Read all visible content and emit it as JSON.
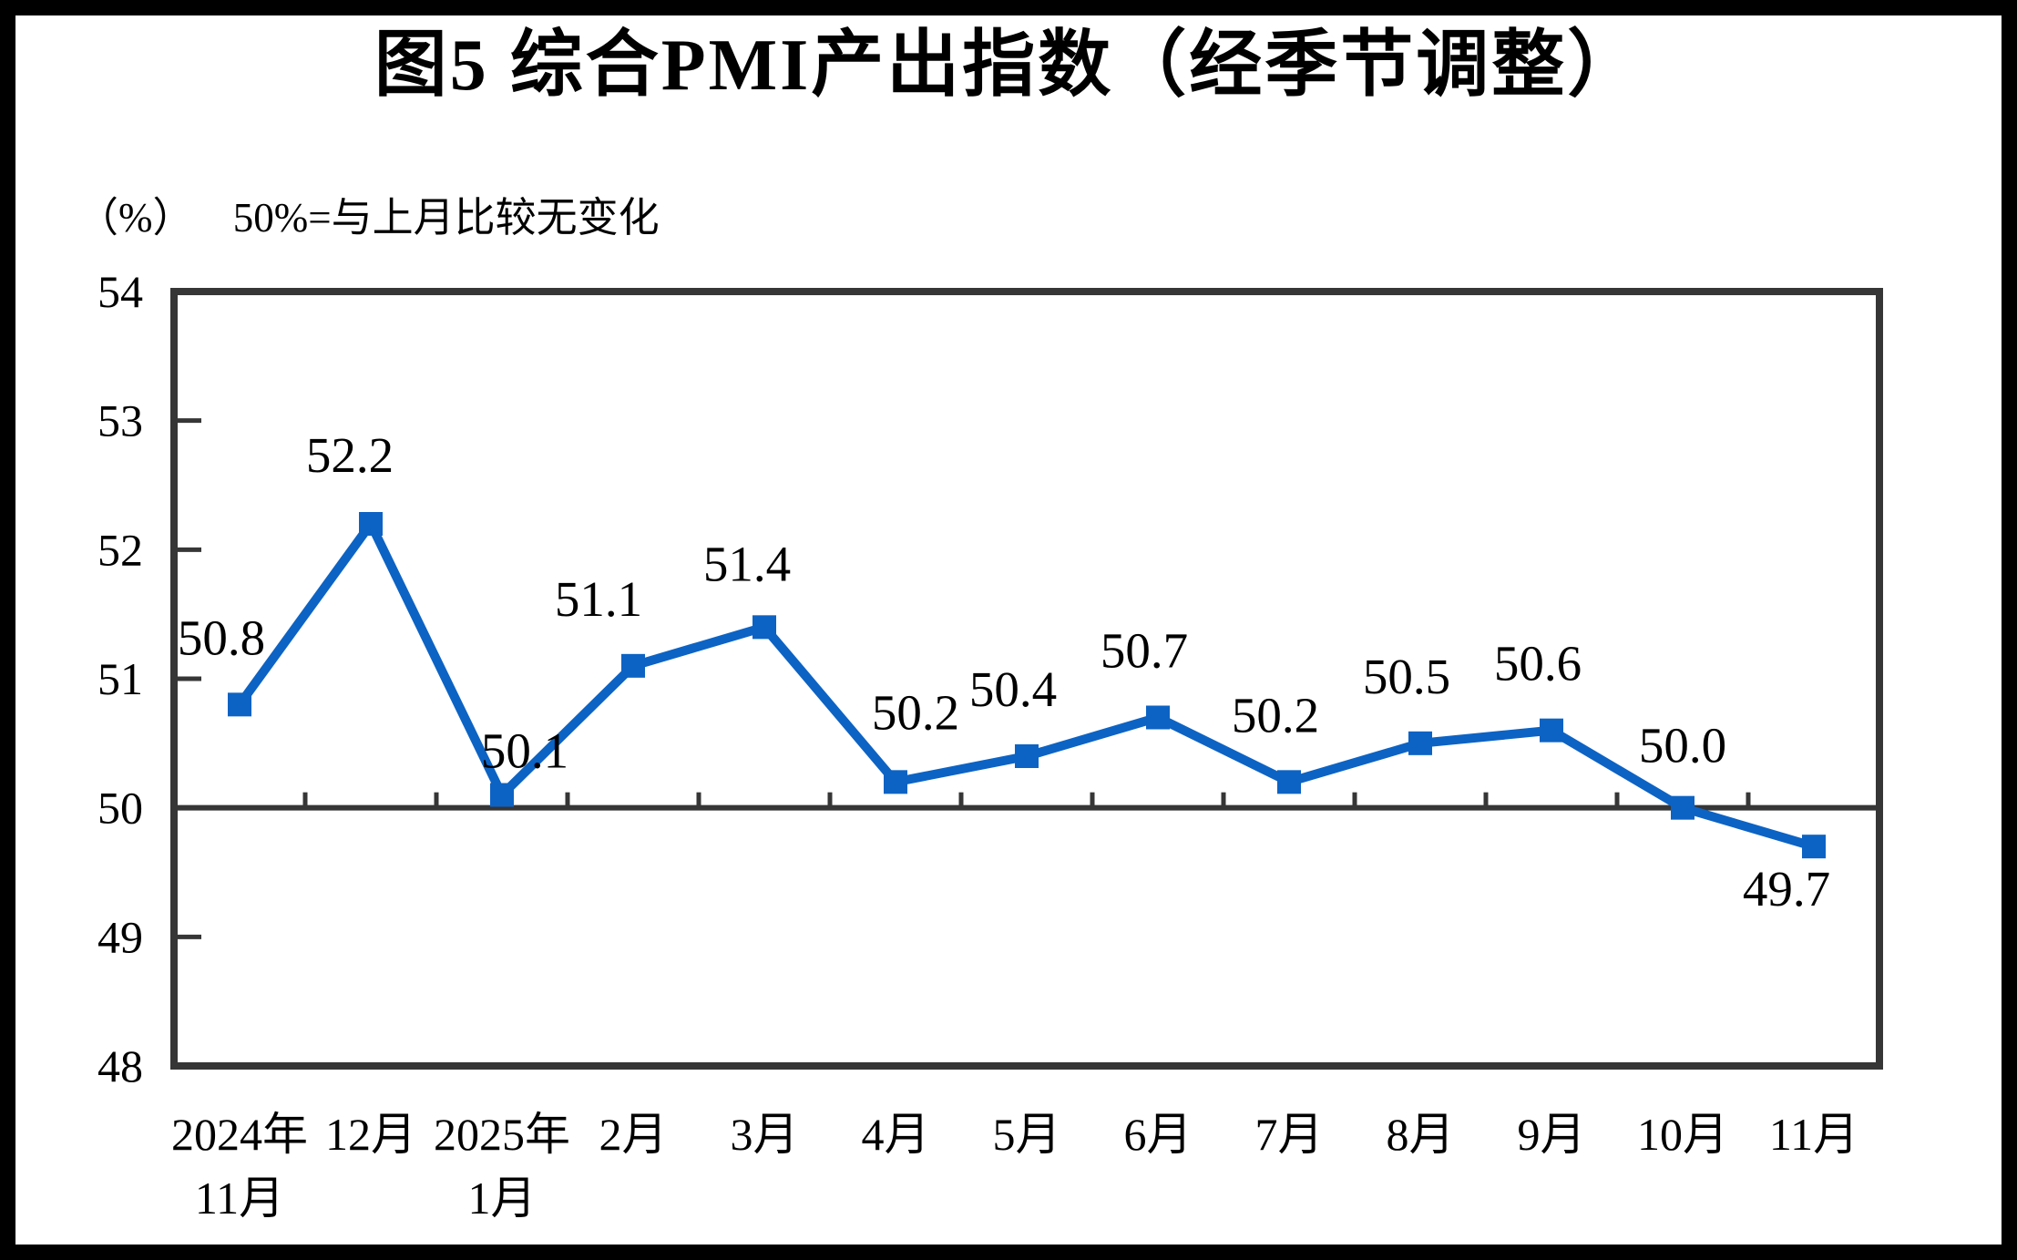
{
  "figure": {
    "title": "图5 综合PMI产出指数（经季节调整）",
    "unit_label": "（%）",
    "baseline_note": "50%=与上月比较无变化"
  },
  "chart_data": {
    "type": "line",
    "title": "图5 综合PMI产出指数（经季节调整）",
    "subtitle": "（%） 50%=与上月比较无变化",
    "series_name": "综合PMI产出指数（经季节调整）",
    "categories": [
      "2024年\n11月",
      "12月",
      "2025年\n1月",
      "2月",
      "3月",
      "4月",
      "5月",
      "6月",
      "7月",
      "8月",
      "9月",
      "10月",
      "11月"
    ],
    "values": [
      50.8,
      52.2,
      50.1,
      51.1,
      51.4,
      50.2,
      50.4,
      50.7,
      50.2,
      50.5,
      50.6,
      50.0,
      49.7
    ],
    "ylabel": "%",
    "ylim": [
      48,
      54
    ],
    "yticks": [
      48,
      49,
      50,
      51,
      52,
      53,
      54
    ],
    "reference_line": 50,
    "grid": false,
    "legend_position": "none",
    "marker": "square",
    "line_color": "#0c63c4",
    "axis_color": "#363636",
    "text_color": "#000000"
  }
}
